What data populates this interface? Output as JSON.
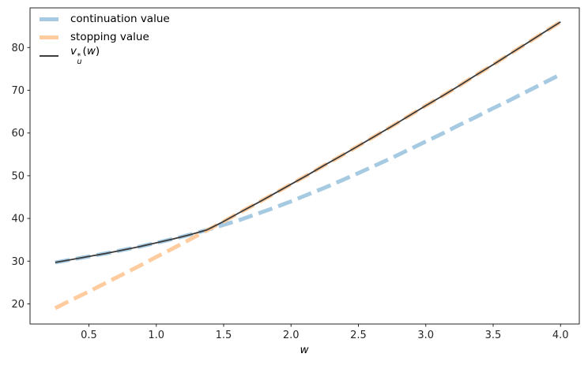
{
  "figure": {
    "background": "#ffffff",
    "xlabel": "w",
    "axis_color": "#262626",
    "x_ticks": {
      "values": [
        0.5,
        1.0,
        1.5,
        2.0,
        2.5,
        3.0,
        3.5,
        4.0
      ],
      "labels": [
        "0.5",
        "1.0",
        "1.5",
        "2.0",
        "2.5",
        "3.0",
        "3.5",
        "4.0"
      ]
    },
    "y_ticks": {
      "values": [
        20,
        30,
        40,
        50,
        60,
        70,
        80
      ],
      "labels": [
        "20",
        "30",
        "40",
        "50",
        "60",
        "70",
        "80"
      ]
    }
  },
  "legend": {
    "entries": [
      {
        "label": "continuation value",
        "color": "#a6cae1",
        "style": "thick-dash"
      },
      {
        "label": "stopping value",
        "color": "#fecc9e",
        "style": "thick-dash"
      },
      {
        "label": "v*u(w)",
        "math": {
          "base": "v",
          "sup": "*",
          "sub": "u",
          "rest": "("
        },
        "arg": "w",
        "close": ")",
        "color": "#3d3d3d",
        "style": "thin-solid"
      }
    ]
  },
  "chart_data": {
    "type": "line",
    "title": "",
    "xlabel": "w",
    "ylabel": "",
    "xlim": [
      0.06,
      4.14
    ],
    "ylim": [
      15.3,
      89.3
    ],
    "grid": false,
    "legend_position": "upper left",
    "x": [
      0.25,
      0.375,
      0.5,
      0.625,
      0.75,
      0.875,
      1.0,
      1.125,
      1.25,
      1.375,
      1.5,
      1.625,
      1.75,
      1.875,
      2.0,
      2.125,
      2.25,
      2.375,
      2.5,
      2.625,
      2.75,
      2.875,
      3.0,
      3.125,
      3.25,
      3.375,
      3.5,
      3.625,
      3.75,
      3.875,
      4.0
    ],
    "series": [
      {
        "name": "continuation value",
        "color": "#a6cae1",
        "linestyle": "dashed",
        "linewidth": 5,
        "values": [
          29.7,
          30.4,
          31.1,
          31.8,
          32.6,
          33.4,
          34.3,
          35.2,
          36.2,
          37.3,
          38.5,
          39.7,
          41.1,
          42.5,
          44.0,
          45.6,
          47.2,
          48.9,
          50.6,
          52.4,
          54.2,
          56.1,
          58.0,
          59.9,
          61.9,
          63.8,
          65.8,
          67.7,
          69.7,
          71.7,
          73.7
        ]
      },
      {
        "name": "stopping value",
        "color": "#fecc9e",
        "linestyle": "dashed",
        "linewidth": 5,
        "values": [
          19.0,
          21.0,
          22.9,
          24.9,
          26.9,
          28.9,
          31.0,
          33.0,
          35.1,
          37.2,
          39.3,
          41.5,
          43.6,
          45.8,
          48.0,
          50.2,
          52.5,
          54.7,
          57.0,
          59.3,
          61.6,
          64.0,
          66.4,
          68.7,
          71.1,
          73.6,
          76.0,
          78.5,
          81.0,
          83.5,
          86.0
        ]
      },
      {
        "name": "v_u^*(w)",
        "color": "#3a3a3a",
        "linestyle": "solid",
        "linewidth": 1.8,
        "values": [
          29.7,
          30.4,
          31.1,
          31.8,
          32.6,
          33.4,
          34.3,
          35.2,
          36.2,
          37.3,
          39.3,
          41.5,
          43.6,
          45.8,
          48.0,
          50.2,
          52.5,
          54.7,
          57.0,
          59.3,
          61.6,
          64.0,
          66.4,
          68.7,
          71.1,
          73.6,
          76.0,
          78.5,
          81.0,
          83.5,
          86.0
        ]
      }
    ]
  }
}
